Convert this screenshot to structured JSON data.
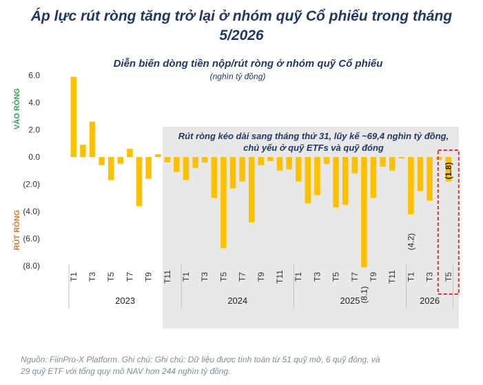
{
  "title_line1": "Áp lực rút ròng tăng trở lại ở nhóm quỹ Cổ phiếu trong tháng",
  "title_line2": "5/2026",
  "side_label_in": "VÀO RÒNG",
  "side_label_out": "RÚT RÒNG",
  "footer_line1": "Nguồn: FiinPro-X Platform. Ghi chú: Ghi chú: Dữ liệu được tính toán từ 51 quỹ mở, 6 quỹ đóng, và",
  "footer_line2": "29 quỹ ETF với tổng quy mô NAV hơn 244 nghìn tỷ đồng.",
  "colors": {
    "bar": "#ffc000",
    "title": "#1f3864",
    "shade": "#e8e8e8",
    "highlight_box": "#e03030"
  },
  "chart_data": {
    "type": "bar",
    "title": "Diễn biến dòng tiền nộp/rút ròng ở nhóm quỹ Cổ phiếu",
    "subtitle": "(nghìn tỷ đồng)",
    "ylim": [
      -8,
      6
    ],
    "yticks": [
      "6.0",
      "4.0",
      "2.0",
      "0.0",
      "(2.0)",
      "(4.0)",
      "(6.0)",
      "(8.0)"
    ],
    "ytick_values": [
      6,
      4,
      2,
      0,
      -2,
      -4,
      -6,
      -8
    ],
    "grid": false,
    "categories": [
      "T1",
      "T2",
      "T3",
      "T4",
      "T5",
      "T6",
      "T7",
      "T8",
      "T9",
      "T10",
      "T11",
      "T12",
      "T1",
      "T2",
      "T3",
      "T4",
      "T5",
      "T6",
      "T7",
      "T8",
      "T9",
      "T10",
      "T11",
      "T12",
      "T1",
      "T2",
      "T3",
      "T4",
      "T5",
      "T6",
      "T7",
      "T8",
      "T9",
      "T10",
      "T11",
      "T12",
      "T1",
      "T2",
      "T3",
      "T4",
      "T5"
    ],
    "tick_labels": [
      "T1",
      "",
      "T3",
      "",
      "T5",
      "",
      "T7",
      "",
      "T9",
      "",
      "T11",
      "",
      "T1",
      "",
      "T3",
      "",
      "T5",
      "",
      "T7",
      "",
      "T9",
      "",
      "T11",
      "",
      "T1",
      "",
      "T3",
      "",
      "T5",
      "",
      "T7",
      "",
      "T9",
      "",
      "T11",
      "",
      "T1",
      "",
      "T3",
      "",
      "T5"
    ],
    "years": [
      "2023",
      "2024",
      "2025",
      "2026"
    ],
    "year_group_sizes": [
      12,
      12,
      12,
      5
    ],
    "values": [
      5.9,
      0.9,
      2.6,
      -0.6,
      -1.7,
      -0.5,
      0.6,
      -3.6,
      -1.6,
      0.2,
      -0.4,
      -1.1,
      -1.7,
      -0.8,
      -0.4,
      -3.0,
      -6.7,
      -2.3,
      -1.8,
      -4.8,
      -0.6,
      -0.3,
      -1.0,
      -0.9,
      -1.8,
      -3.4,
      -2.8,
      -0.5,
      -3.7,
      -3.5,
      -1.2,
      -8.1,
      -3.0,
      -0.7,
      -1.0,
      -0.1,
      -4.2,
      -2.5,
      -3.2,
      -0.2,
      -1.8
    ],
    "data_labels": [
      {
        "index": 31,
        "text": "(8.1)"
      },
      {
        "index": 36,
        "text": "(4.2)"
      },
      {
        "index": 40,
        "text": "(1.8)"
      }
    ],
    "annotation": "Rút ròng kéo dài sang tháng thứ 31, lũy kế ~69,4 nghìn tỷ đồng, chủ yếu ở quỹ ETFs và quỹ đóng"
  }
}
